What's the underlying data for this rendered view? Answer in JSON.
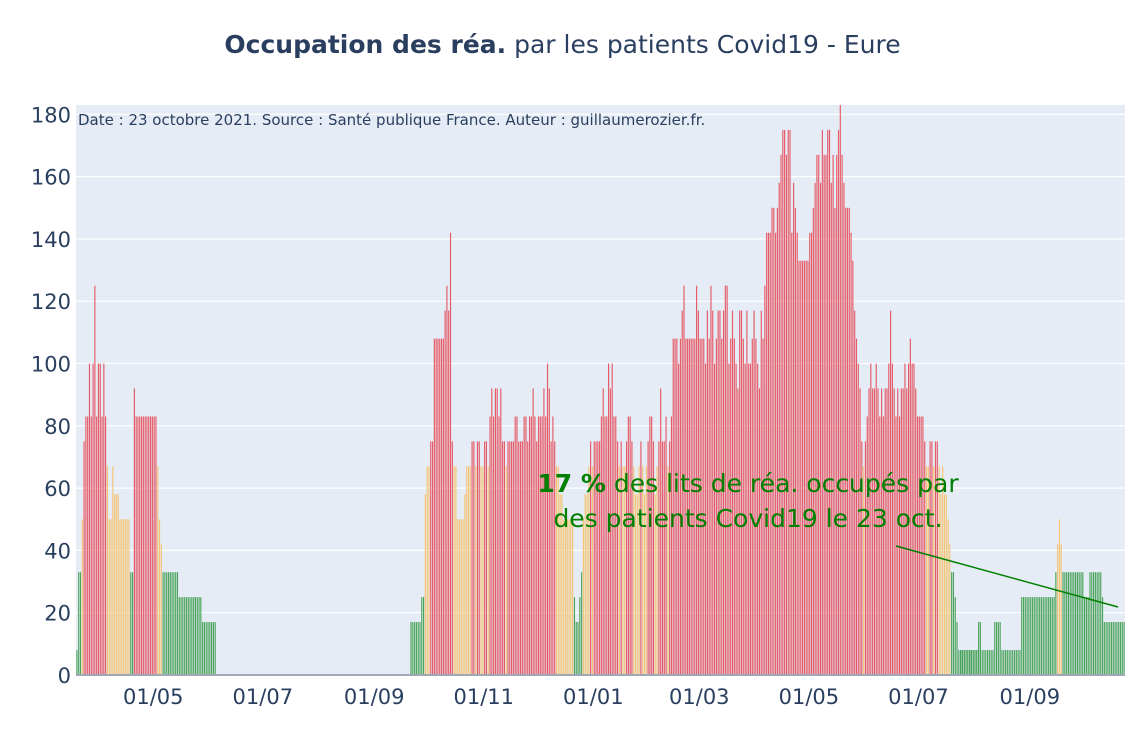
{
  "title": {
    "bold": "Occupation des réa.",
    "rest": " par les patients Covid19 - Eure"
  },
  "annotation_top": "Date : 23 octobre 2021. Source : Santé publique France. Auteur : guillaumerozier.fr.",
  "callout": {
    "pct": "17  %",
    "line1": " des lits de réa. occupés par",
    "line2": "des patients Covid19 le 23 oct."
  },
  "colors": {
    "red": "#e55a66",
    "orange": "#f5c474",
    "green": "#4aa35a",
    "plot_bg": "#e5ecf6",
    "grid": "#ffffff",
    "text": "#2a3f5f",
    "callout": "#008000"
  },
  "chart_data": {
    "type": "bar",
    "title": "Occupation des réa. par les patients Covid19 - Eure",
    "x_range": [
      "2020-03-19",
      "2021-10-23"
    ],
    "ylim": [
      0,
      183
    ],
    "y_ticks": [
      0,
      20,
      40,
      60,
      80,
      100,
      120,
      140,
      160,
      180
    ],
    "x_ticks": [
      {
        "date": "2020-05-01",
        "label": "01/05"
      },
      {
        "date": "2020-07-01",
        "label": "01/07"
      },
      {
        "date": "2020-09-01",
        "label": "01/09"
      },
      {
        "date": "2020-11-01",
        "label": "01/11"
      },
      {
        "date": "2021-01-01",
        "label": "01/01"
      },
      {
        "date": "2021-03-01",
        "label": "01/03"
      },
      {
        "date": "2021-05-01",
        "label": "01/05"
      },
      {
        "date": "2021-07-01",
        "label": "01/07"
      },
      {
        "date": "2021-09-01",
        "label": "01/09"
      }
    ],
    "color_thresholds": {
      "green_below": 40,
      "orange_below": 70
    },
    "values_note": "Daily intensive-care bed occupancy (%) in Eure",
    "segments": [
      {
        "start": "2020-03-19",
        "values": [
          8,
          33,
          33,
          50,
          75,
          83,
          83,
          100,
          83,
          100,
          125,
          83,
          100,
          100,
          83,
          100,
          83,
          67,
          50,
          50,
          67,
          58,
          58,
          58,
          50,
          50,
          50,
          50,
          50,
          50,
          33,
          33,
          92,
          83,
          83,
          83,
          83,
          83,
          83,
          83,
          83,
          83,
          83,
          83,
          83,
          67,
          50,
          42,
          33,
          33,
          33,
          33,
          33,
          33,
          33,
          33,
          33,
          25,
          25,
          25,
          25,
          25,
          25,
          25,
          25,
          25,
          25,
          25,
          25,
          25,
          17,
          17,
          17,
          17,
          17,
          17,
          17,
          17
        ]
      },
      {
        "start": "2020-09-21",
        "values": [
          17,
          17,
          17,
          17,
          17,
          17,
          25,
          25,
          58,
          67,
          67,
          75,
          75,
          108,
          108,
          108,
          108,
          108,
          108,
          117,
          125,
          117,
          142,
          75,
          67,
          67,
          50,
          50,
          50,
          50,
          58,
          67,
          67,
          67,
          75,
          75,
          67,
          75,
          75,
          67,
          67,
          75,
          75,
          67,
          83,
          92,
          83,
          92,
          92,
          83,
          92,
          75,
          75,
          67,
          75,
          75,
          75,
          75,
          83,
          83,
          75,
          75,
          75,
          83,
          83,
          75,
          83,
          83,
          92,
          83,
          75,
          83,
          83,
          83,
          92,
          83,
          100,
          92,
          75,
          83,
          75,
          67,
          67,
          58,
          58,
          50,
          50,
          50,
          50,
          50,
          50,
          25,
          17,
          17,
          25,
          33
        ]
      },
      {
        "start": "2020-12-26",
        "values": [
          50,
          58,
          58,
          67,
          75,
          67,
          75,
          75,
          75,
          75,
          83,
          92,
          83,
          83,
          100,
          92,
          100,
          83,
          83,
          75,
          67,
          75,
          67,
          67,
          75,
          83,
          83,
          75,
          67,
          58,
          58,
          67,
          75,
          67,
          58,
          67,
          75,
          83,
          83,
          75,
          58,
          67,
          75,
          92,
          75,
          75,
          83,
          67,
          75,
          83,
          108,
          108,
          108,
          100,
          108,
          117,
          125,
          108,
          108,
          108,
          108,
          108,
          108,
          125,
          117,
          108,
          108,
          108,
          100,
          117,
          108,
          125,
          117,
          100,
          108,
          117,
          117,
          108,
          117,
          125,
          125,
          100,
          108,
          117,
          108,
          100,
          92,
          117,
          117,
          108,
          100,
          117,
          100,
          100,
          108,
          117,
          108,
          100,
          92,
          117,
          108,
          125,
          142,
          142,
          142,
          150,
          150,
          142,
          150,
          158,
          167,
          175,
          175,
          167,
          175,
          175,
          142,
          158,
          150,
          142,
          133,
          133,
          133,
          133,
          133,
          133,
          142,
          142,
          150,
          158,
          167,
          167,
          158,
          175,
          167,
          167,
          175,
          175,
          158,
          167,
          150,
          167,
          175,
          183,
          167,
          158,
          150,
          150,
          150,
          142,
          133,
          117,
          108,
          100,
          92,
          75,
          67,
          75,
          83,
          92,
          100,
          92,
          92,
          100,
          92,
          83,
          92,
          83,
          92,
          92,
          100,
          117,
          100,
          92,
          83,
          92,
          83,
          92,
          92,
          100,
          92,
          100,
          108,
          100,
          100,
          92,
          83,
          83,
          83,
          83,
          75,
          67,
          67,
          75,
          75,
          67,
          75,
          75,
          67,
          58,
          67,
          58,
          58,
          50,
          42,
          33,
          33,
          25,
          17,
          8,
          8,
          8,
          8,
          8,
          8,
          8,
          8,
          8,
          8,
          8,
          8
        ]
      },
      {
        "start": "2021-07-24",
        "values": [
          8,
          8,
          8,
          8,
          8,
          8,
          8,
          8,
          8,
          8,
          17,
          17,
          8,
          8,
          8,
          8,
          8,
          8,
          8,
          17,
          17,
          17,
          17,
          8,
          8,
          8,
          8,
          8,
          8,
          8,
          8,
          8,
          8,
          8,
          25,
          25,
          25,
          25,
          25,
          25,
          25,
          25,
          25,
          25,
          25,
          25,
          25,
          25,
          25,
          25,
          25,
          25,
          25,
          33,
          42,
          50,
          42,
          33,
          33,
          33,
          33,
          33,
          33,
          33,
          33,
          33,
          33,
          33,
          33,
          25,
          25,
          25,
          33,
          33,
          33,
          33,
          33,
          33,
          33,
          25,
          17,
          17,
          17,
          17,
          17,
          17,
          17,
          17,
          17,
          17,
          17,
          17,
          17,
          17,
          17,
          17,
          17,
          17,
          17,
          17,
          8,
          8,
          8
        ]
      }
    ]
  }
}
